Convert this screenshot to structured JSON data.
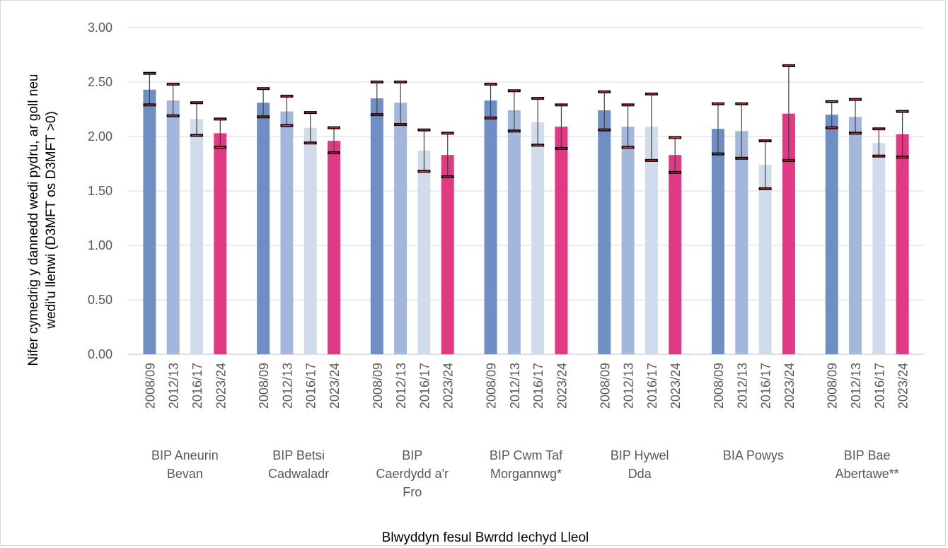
{
  "chart_data": {
    "type": "bar",
    "ylabel_lines": [
      "Nifer cymedrig y dannedd wedi pydru, ar goll neu",
      "wedi'u llenwi (D3MFT os  D3MFT >0)"
    ],
    "xlabel": "Blwyddyn fesul Bwrdd Iechyd Lleol",
    "ylim": [
      0,
      3
    ],
    "yticks": [
      "0.00",
      "0.50",
      "1.00",
      "1.50",
      "2.00",
      "2.50",
      "3.00"
    ],
    "grid": true,
    "years": [
      "2008/09",
      "2012/13",
      "2016/17",
      "2023/24"
    ],
    "colors": [
      "#6f8fc4",
      "#a3b7dc",
      "#d0dcec",
      "#e03a84"
    ],
    "groups": [
      {
        "label_lines": [
          "BIP Aneurin",
          "Bevan"
        ],
        "values": [
          2.43,
          2.33,
          2.16,
          2.03
        ],
        "lower": [
          2.29,
          2.19,
          2.01,
          1.9
        ],
        "upper": [
          2.58,
          2.48,
          2.31,
          2.16
        ]
      },
      {
        "label_lines": [
          "BIP Betsi",
          "Cadwaladr"
        ],
        "values": [
          2.31,
          2.23,
          2.08,
          1.96
        ],
        "lower": [
          2.18,
          2.1,
          1.94,
          1.85
        ],
        "upper": [
          2.44,
          2.37,
          2.22,
          2.08
        ]
      },
      {
        "label_lines": [
          "BIP",
          "Caerdydd a'r",
          "Fro"
        ],
        "values": [
          2.35,
          2.31,
          1.87,
          1.83
        ],
        "lower": [
          2.2,
          2.11,
          1.68,
          1.63
        ],
        "upper": [
          2.5,
          2.5,
          2.06,
          2.03
        ]
      },
      {
        "label_lines": [
          "BIP Cwm Taf",
          "Morgannwg*"
        ],
        "values": [
          2.33,
          2.24,
          2.13,
          2.09
        ],
        "lower": [
          2.17,
          2.05,
          1.92,
          1.89
        ],
        "upper": [
          2.48,
          2.42,
          2.35,
          2.29
        ]
      },
      {
        "label_lines": [
          "BIP Hywel",
          "Dda"
        ],
        "values": [
          2.24,
          2.09,
          2.09,
          1.83
        ],
        "lower": [
          2.06,
          1.9,
          1.78,
          1.67
        ],
        "upper": [
          2.41,
          2.29,
          2.39,
          1.99
        ]
      },
      {
        "label_lines": [
          "BIA Powys"
        ],
        "values": [
          2.07,
          2.05,
          1.74,
          2.21
        ],
        "lower": [
          1.84,
          1.8,
          1.52,
          1.78
        ],
        "upper": [
          2.3,
          2.3,
          1.96,
          2.65
        ]
      },
      {
        "label_lines": [
          "BIP Bae",
          "Abertawe**"
        ],
        "values": [
          2.2,
          2.18,
          1.94,
          2.02
        ],
        "lower": [
          2.08,
          2.03,
          1.82,
          1.81
        ],
        "upper": [
          2.32,
          2.34,
          2.07,
          2.23
        ]
      }
    ]
  }
}
